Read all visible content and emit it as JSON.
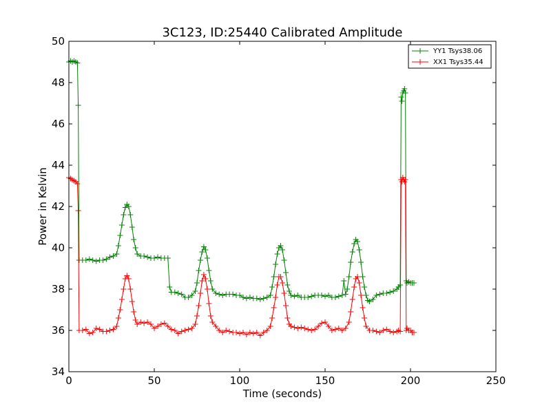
{
  "chart_data": {
    "type": "line",
    "title": "3C123, ID:25440 Calibrated Amplitude",
    "xlabel": "Time (seconds)",
    "ylabel": "Power in Kelvin",
    "xlim": [
      0,
      250
    ],
    "ylim": [
      34,
      50
    ],
    "x_ticks": [
      0,
      50,
      100,
      150,
      200,
      250
    ],
    "y_ticks": [
      34,
      36,
      38,
      40,
      42,
      44,
      46,
      48,
      50
    ],
    "grid": false,
    "legend_position": "top-right",
    "marker": "plus",
    "series": [
      {
        "name": "YY1 Tsys38.06",
        "color": "#008000",
        "points": [
          [
            0,
            49.0
          ],
          [
            1,
            49.05
          ],
          [
            2,
            49.0
          ],
          [
            3,
            49.05
          ],
          [
            4,
            49.0
          ],
          [
            5,
            48.95
          ],
          [
            5.5,
            46.9
          ],
          [
            6,
            39.4
          ],
          [
            8,
            39.4
          ],
          [
            10,
            39.4
          ],
          [
            12,
            39.45
          ],
          [
            14,
            39.4
          ],
          [
            16,
            39.35
          ],
          [
            18,
            39.4
          ],
          [
            20,
            39.4
          ],
          [
            22,
            39.45
          ],
          [
            24,
            39.55
          ],
          [
            26,
            39.6
          ],
          [
            28,
            39.7
          ],
          [
            29,
            40.1
          ],
          [
            30,
            40.6
          ],
          [
            31,
            41.1
          ],
          [
            32,
            41.6
          ],
          [
            33,
            41.95
          ],
          [
            34,
            42.1
          ],
          [
            35,
            42.0
          ],
          [
            36,
            41.6
          ],
          [
            37,
            41.0
          ],
          [
            38,
            40.4
          ],
          [
            39,
            40.0
          ],
          [
            40,
            39.7
          ],
          [
            42,
            39.6
          ],
          [
            44,
            39.6
          ],
          [
            46,
            39.55
          ],
          [
            48,
            39.5
          ],
          [
            50,
            39.5
          ],
          [
            52,
            39.55
          ],
          [
            54,
            39.5
          ],
          [
            56,
            39.5
          ],
          [
            58,
            39.5
          ],
          [
            59,
            38.1
          ],
          [
            60,
            37.85
          ],
          [
            62,
            37.85
          ],
          [
            64,
            37.8
          ],
          [
            66,
            37.75
          ],
          [
            68,
            37.6
          ],
          [
            70,
            37.6
          ],
          [
            72,
            37.7
          ],
          [
            74,
            37.9
          ],
          [
            75,
            38.3
          ],
          [
            76,
            38.9
          ],
          [
            77,
            39.4
          ],
          [
            78,
            39.8
          ],
          [
            79,
            40.05
          ],
          [
            80,
            39.9
          ],
          [
            81,
            39.5
          ],
          [
            82,
            38.9
          ],
          [
            83,
            38.4
          ],
          [
            84,
            38.0
          ],
          [
            86,
            37.8
          ],
          [
            88,
            37.75
          ],
          [
            90,
            37.7
          ],
          [
            92,
            37.75
          ],
          [
            94,
            37.75
          ],
          [
            96,
            37.75
          ],
          [
            98,
            37.7
          ],
          [
            100,
            37.7
          ],
          [
            102,
            37.6
          ],
          [
            104,
            37.55
          ],
          [
            106,
            37.6
          ],
          [
            108,
            37.55
          ],
          [
            110,
            37.55
          ],
          [
            112,
            37.5
          ],
          [
            114,
            37.55
          ],
          [
            116,
            37.6
          ],
          [
            118,
            37.7
          ],
          [
            119,
            38.1
          ],
          [
            120,
            38.6
          ],
          [
            121,
            39.2
          ],
          [
            122,
            39.7
          ],
          [
            123,
            40.0
          ],
          [
            124,
            40.1
          ],
          [
            125,
            39.9
          ],
          [
            126,
            39.4
          ],
          [
            127,
            38.8
          ],
          [
            128,
            38.2
          ],
          [
            129,
            37.9
          ],
          [
            130,
            37.7
          ],
          [
            132,
            37.65
          ],
          [
            134,
            37.7
          ],
          [
            136,
            37.6
          ],
          [
            138,
            37.6
          ],
          [
            140,
            37.6
          ],
          [
            142,
            37.65
          ],
          [
            144,
            37.7
          ],
          [
            146,
            37.7
          ],
          [
            148,
            37.7
          ],
          [
            150,
            37.65
          ],
          [
            152,
            37.7
          ],
          [
            154,
            37.6
          ],
          [
            156,
            37.6
          ],
          [
            158,
            37.65
          ],
          [
            160,
            37.7
          ],
          [
            161,
            38.4
          ],
          [
            162,
            37.75
          ],
          [
            163,
            38.0
          ],
          [
            164,
            38.6
          ],
          [
            165,
            39.3
          ],
          [
            166,
            39.8
          ],
          [
            167,
            40.2
          ],
          [
            168,
            40.4
          ],
          [
            169,
            40.3
          ],
          [
            170,
            39.9
          ],
          [
            171,
            39.3
          ],
          [
            172,
            38.6
          ],
          [
            173,
            38.1
          ],
          [
            174,
            37.7
          ],
          [
            175,
            37.45
          ],
          [
            176,
            37.4
          ],
          [
            178,
            37.5
          ],
          [
            180,
            37.7
          ],
          [
            182,
            37.75
          ],
          [
            184,
            37.8
          ],
          [
            186,
            37.8
          ],
          [
            188,
            37.85
          ],
          [
            190,
            37.9
          ],
          [
            192,
            38.0
          ],
          [
            193,
            38.1
          ],
          [
            194,
            38.2
          ],
          [
            194.5,
            47.3
          ],
          [
            195,
            47.1
          ],
          [
            195.5,
            47.5
          ],
          [
            196,
            47.6
          ],
          [
            196.5,
            47.7
          ],
          [
            197,
            47.5
          ],
          [
            197.5,
            38.4
          ],
          [
            198,
            38.3
          ],
          [
            199,
            38.35
          ],
          [
            200,
            38.3
          ],
          [
            201,
            38.3
          ],
          [
            202,
            38.3
          ]
        ]
      },
      {
        "name": "XX1 Tsys35.44",
        "color": "#ff0000",
        "points": [
          [
            0,
            43.4
          ],
          [
            1,
            43.35
          ],
          [
            2,
            43.3
          ],
          [
            3,
            43.25
          ],
          [
            4,
            43.2
          ],
          [
            5,
            43.1
          ],
          [
            5.5,
            41.8
          ],
          [
            6,
            36.0
          ],
          [
            8,
            36.0
          ],
          [
            10,
            36.05
          ],
          [
            12,
            35.85
          ],
          [
            14,
            35.9
          ],
          [
            16,
            36.1
          ],
          [
            18,
            36.05
          ],
          [
            20,
            35.95
          ],
          [
            22,
            35.95
          ],
          [
            24,
            36.0
          ],
          [
            26,
            36.05
          ],
          [
            28,
            36.2
          ],
          [
            29,
            36.6
          ],
          [
            30,
            37.0
          ],
          [
            31,
            37.5
          ],
          [
            32,
            38.0
          ],
          [
            33,
            38.5
          ],
          [
            34,
            38.65
          ],
          [
            35,
            38.5
          ],
          [
            36,
            38.0
          ],
          [
            37,
            37.4
          ],
          [
            38,
            36.9
          ],
          [
            39,
            36.5
          ],
          [
            40,
            36.3
          ],
          [
            42,
            36.4
          ],
          [
            44,
            36.35
          ],
          [
            46,
            36.4
          ],
          [
            48,
            36.3
          ],
          [
            50,
            36.1
          ],
          [
            52,
            36.2
          ],
          [
            54,
            36.3
          ],
          [
            56,
            36.35
          ],
          [
            58,
            36.2
          ],
          [
            60,
            36.05
          ],
          [
            62,
            36.0
          ],
          [
            64,
            35.85
          ],
          [
            66,
            35.95
          ],
          [
            68,
            36.0
          ],
          [
            70,
            36.05
          ],
          [
            72,
            36.1
          ],
          [
            74,
            36.3
          ],
          [
            75,
            36.7
          ],
          [
            76,
            37.2
          ],
          [
            77,
            37.8
          ],
          [
            78,
            38.4
          ],
          [
            79,
            38.7
          ],
          [
            80,
            38.5
          ],
          [
            81,
            38.0
          ],
          [
            82,
            37.3
          ],
          [
            83,
            36.7
          ],
          [
            84,
            36.4
          ],
          [
            86,
            36.2
          ],
          [
            88,
            36.0
          ],
          [
            90,
            35.9
          ],
          [
            92,
            36.0
          ],
          [
            94,
            35.95
          ],
          [
            96,
            35.9
          ],
          [
            98,
            35.9
          ],
          [
            100,
            35.85
          ],
          [
            102,
            35.9
          ],
          [
            104,
            35.8
          ],
          [
            106,
            35.9
          ],
          [
            108,
            35.85
          ],
          [
            110,
            35.9
          ],
          [
            112,
            35.75
          ],
          [
            114,
            35.9
          ],
          [
            116,
            36.0
          ],
          [
            118,
            36.2
          ],
          [
            119,
            36.6
          ],
          [
            120,
            37.1
          ],
          [
            121,
            37.6
          ],
          [
            122,
            38.2
          ],
          [
            123,
            38.6
          ],
          [
            124,
            38.6
          ],
          [
            125,
            38.3
          ],
          [
            126,
            37.8
          ],
          [
            127,
            37.2
          ],
          [
            128,
            36.6
          ],
          [
            129,
            36.3
          ],
          [
            130,
            36.2
          ],
          [
            132,
            36.15
          ],
          [
            134,
            36.1
          ],
          [
            136,
            36.15
          ],
          [
            138,
            36.1
          ],
          [
            140,
            36.05
          ],
          [
            142,
            36.0
          ],
          [
            144,
            36.05
          ],
          [
            146,
            36.2
          ],
          [
            148,
            36.35
          ],
          [
            150,
            36.4
          ],
          [
            152,
            36.2
          ],
          [
            154,
            36.0
          ],
          [
            156,
            36.05
          ],
          [
            158,
            36.1
          ],
          [
            160,
            36.0
          ],
          [
            162,
            36.1
          ],
          [
            164,
            36.4
          ],
          [
            165,
            36.9
          ],
          [
            166,
            37.5
          ],
          [
            167,
            38.1
          ],
          [
            168,
            38.5
          ],
          [
            169,
            38.6
          ],
          [
            170,
            38.3
          ],
          [
            171,
            37.7
          ],
          [
            172,
            37.1
          ],
          [
            173,
            36.6
          ],
          [
            174,
            36.2
          ],
          [
            176,
            36.0
          ],
          [
            178,
            36.0
          ],
          [
            180,
            35.95
          ],
          [
            182,
            35.9
          ],
          [
            184,
            36.0
          ],
          [
            186,
            36.05
          ],
          [
            188,
            35.95
          ],
          [
            190,
            35.9
          ],
          [
            192,
            35.95
          ],
          [
            193,
            36.0
          ],
          [
            194,
            35.95
          ],
          [
            194.5,
            43.3
          ],
          [
            195,
            43.2
          ],
          [
            195.5,
            43.4
          ],
          [
            196,
            43.3
          ],
          [
            196.5,
            43.2
          ],
          [
            197,
            43.3
          ],
          [
            197.5,
            36.0
          ],
          [
            198,
            36.1
          ],
          [
            199,
            36.0
          ],
          [
            200,
            36.0
          ],
          [
            201,
            35.9
          ],
          [
            202,
            35.9
          ]
        ]
      }
    ]
  }
}
